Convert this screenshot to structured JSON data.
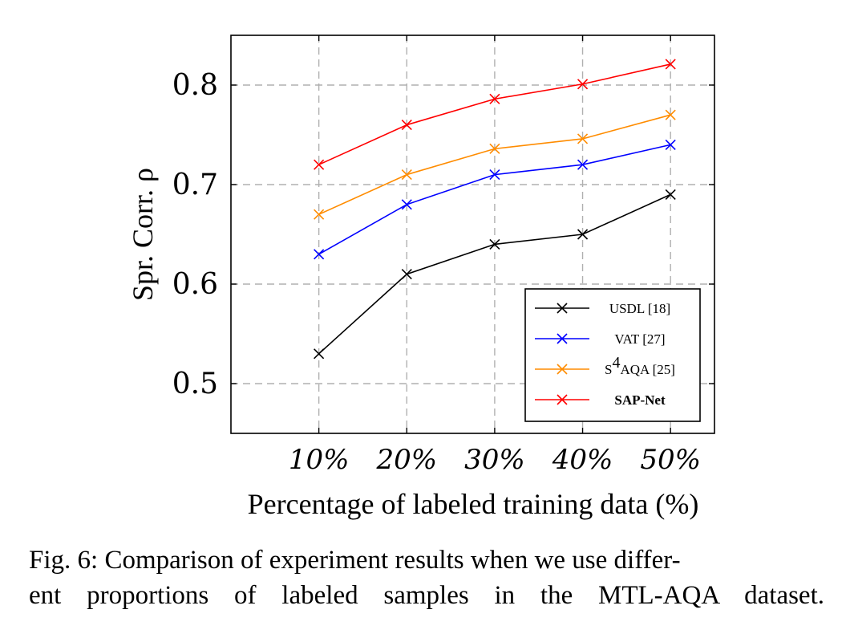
{
  "chart_data": {
    "type": "line",
    "x": [
      "10%",
      "20%",
      "30%",
      "40%",
      "50%"
    ],
    "x_values": [
      10,
      20,
      30,
      40,
      50
    ],
    "xlabel": "Percentage of labeled training data (%)",
    "ylabel": "Spr. Corr. ρ",
    "ylim": [
      0.45,
      0.85
    ],
    "yticks": [
      "0.5",
      "0.6",
      "0.7",
      "0.8"
    ],
    "ytick_values": [
      0.5,
      0.6,
      0.7,
      0.8
    ],
    "grid": true,
    "legend_position": "bottom-right",
    "series": [
      {
        "name": "USDL [18]",
        "color": "#000000",
        "marker": "x",
        "values": [
          0.53,
          0.61,
          0.64,
          0.65,
          0.69
        ]
      },
      {
        "name": "VAT [27]",
        "color": "#0000ff",
        "marker": "x",
        "values": [
          0.63,
          0.68,
          0.71,
          0.72,
          0.74
        ]
      },
      {
        "name": "S4AQA [25]",
        "color": "#ff8c00",
        "marker": "x",
        "values": [
          0.67,
          0.71,
          0.736,
          0.746,
          0.77
        ]
      },
      {
        "name": "SAP-Net",
        "color": "#ff0000",
        "marker": "x",
        "values": [
          0.72,
          0.76,
          0.786,
          0.801,
          0.821
        ],
        "bold": true
      }
    ]
  },
  "caption": {
    "line1": "Fig. 6: Comparison of experiment results when we use differ-",
    "line2": "ent proportions of labeled samples in the MTL-AQA dataset."
  }
}
